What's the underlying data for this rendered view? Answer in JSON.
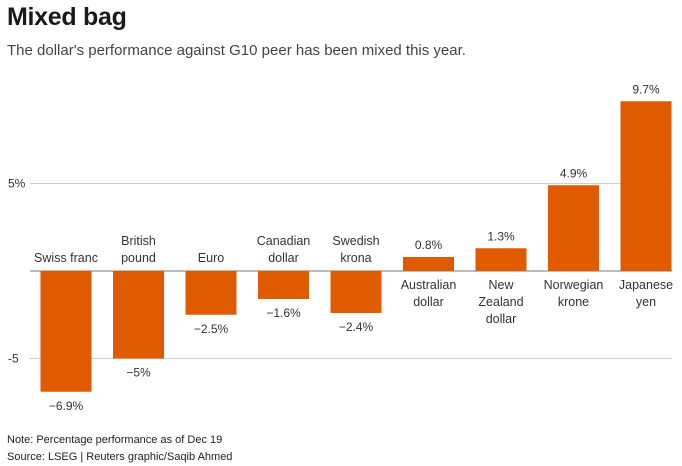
{
  "chart_data": {
    "type": "bar",
    "title": "Mixed bag",
    "subtitle": "The dollar's performance against G10 peer has been mixed this year.",
    "categories": [
      [
        "Swiss franc"
      ],
      [
        "British",
        "pound"
      ],
      [
        "Euro"
      ],
      [
        "Canadian",
        "dollar"
      ],
      [
        "Swedish",
        "krona"
      ],
      [
        "Australian",
        "dollar"
      ],
      [
        "New",
        "Zealand",
        "dollar"
      ],
      [
        "Norwegian",
        "krone"
      ],
      [
        "Japanese",
        "yen"
      ]
    ],
    "values": [
      -6.9,
      -5,
      -2.5,
      -1.6,
      -2.4,
      0.8,
      1.3,
      4.9,
      9.7
    ],
    "value_labels": [
      "−6.9%",
      "−5%",
      "−2.5%",
      "−1.6%",
      "−2.4%",
      "0.8%",
      "1.3%",
      "4.9%",
      "9.7%"
    ],
    "yticks": [
      5,
      -5
    ],
    "ytick_labels": [
      "5%",
      "-5"
    ],
    "ylim": [
      -7.5,
      10.5
    ],
    "grid": true,
    "bar_color": "#e05a00",
    "note": "Note: Percentage performance as of Dec 19",
    "source": "Source: LSEG | Reuters graphic/Saqib Ahmed"
  }
}
